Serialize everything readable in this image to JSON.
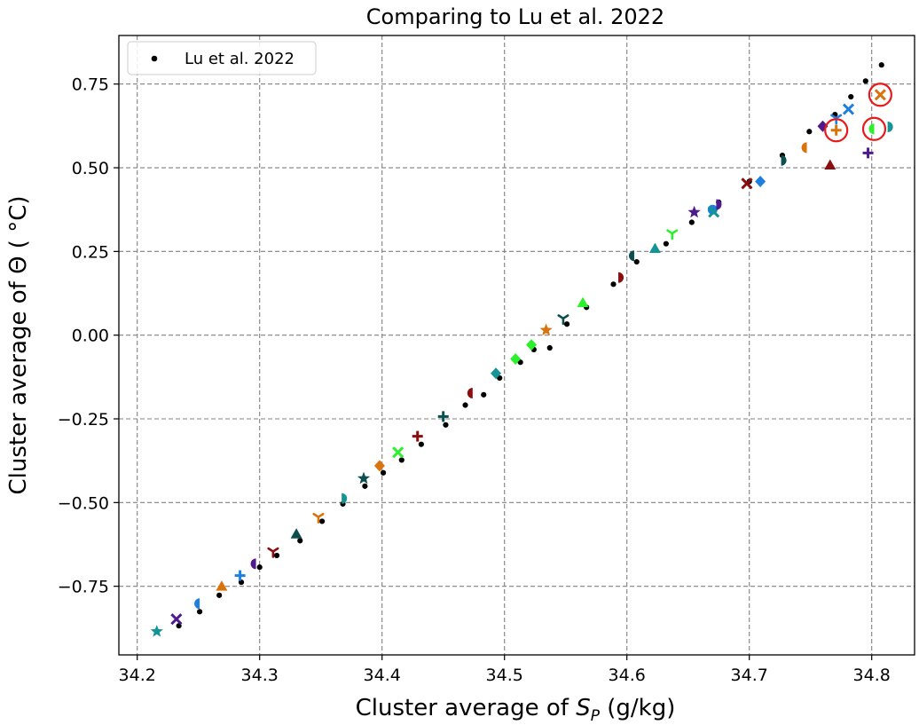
{
  "chart_data": {
    "type": "scatter",
    "title": "Comparing to Lu et al. 2022",
    "xlabel_main": "Cluster average of ",
    "xlabel_var": "S",
    "xlabel_sub": "P",
    "xlabel_unit": " (g/kg)",
    "ylabel": "Cluster average of Θ ( °C)",
    "xlim": [
      34.185,
      34.835
    ],
    "ylim": [
      -0.955,
      0.895
    ],
    "xticks": [
      34.2,
      34.3,
      34.4,
      34.5,
      34.6,
      34.7,
      34.8
    ],
    "xtick_labels": [
      "34.2",
      "34.3",
      "34.4",
      "34.5",
      "34.6",
      "34.7",
      "34.8"
    ],
    "yticks": [
      -0.75,
      -0.5,
      -0.25,
      0.0,
      0.25,
      0.5,
      0.75
    ],
    "ytick_labels": [
      "−0.75",
      "−0.50",
      "−0.25",
      "0.00",
      "0.25",
      "0.50",
      "0.75"
    ],
    "grid": true,
    "legend": {
      "position": "top-left",
      "entries": [
        "Lu et al. 2022"
      ]
    },
    "reference_series": {
      "name": "Lu et al. 2022",
      "color": "#000000",
      "points": [
        [
          34.234,
          -0.868
        ],
        [
          34.251,
          -0.826
        ],
        [
          34.267,
          -0.777
        ],
        [
          34.285,
          -0.738
        ],
        [
          34.3,
          -0.693
        ],
        [
          34.314,
          -0.658
        ],
        [
          34.333,
          -0.614
        ],
        [
          34.351,
          -0.556
        ],
        [
          34.368,
          -0.504
        ],
        [
          34.386,
          -0.451
        ],
        [
          34.401,
          -0.411
        ],
        [
          34.416,
          -0.373
        ],
        [
          34.432,
          -0.326
        ],
        [
          34.452,
          -0.268
        ],
        [
          34.468,
          -0.209
        ],
        [
          34.483,
          -0.178
        ],
        [
          34.496,
          -0.128
        ],
        [
          34.513,
          -0.081
        ],
        [
          34.524,
          -0.043
        ],
        [
          34.537,
          -0.038
        ],
        [
          34.551,
          0.033
        ],
        [
          34.567,
          0.083
        ],
        [
          34.589,
          0.152
        ],
        [
          34.608,
          0.219
        ],
        [
          34.632,
          0.273
        ],
        [
          34.653,
          0.337
        ],
        [
          34.675,
          0.397
        ],
        [
          34.7,
          0.459
        ],
        [
          34.727,
          0.537
        ],
        [
          34.749,
          0.608
        ],
        [
          34.77,
          0.659
        ],
        [
          34.783,
          0.712
        ],
        [
          34.795,
          0.759
        ],
        [
          34.808,
          0.807
        ]
      ]
    },
    "cluster_series": {
      "points": [
        {
          "x": 34.216,
          "y": -0.885,
          "marker": "star",
          "color": "#149494"
        },
        {
          "x": 34.232,
          "y": -0.848,
          "marker": "x",
          "color": "#4f1a8c"
        },
        {
          "x": 34.251,
          "y": -0.802,
          "marker": "half-circle-left",
          "color": "#1f7fde"
        },
        {
          "x": 34.269,
          "y": -0.75,
          "marker": "triangle",
          "color": "#d9730d"
        },
        {
          "x": 34.284,
          "y": -0.718,
          "marker": "plus",
          "color": "#1f7fde"
        },
        {
          "x": 34.297,
          "y": -0.683,
          "marker": "half-circle-left",
          "color": "#4f1a8c"
        },
        {
          "x": 34.311,
          "y": -0.646,
          "marker": "tri-down",
          "color": "#8c0d0d"
        },
        {
          "x": 34.33,
          "y": -0.594,
          "marker": "triangle",
          "color": "#0d4f4f"
        },
        {
          "x": 34.348,
          "y": -0.543,
          "marker": "tri-down",
          "color": "#d9730d"
        },
        {
          "x": 34.367,
          "y": -0.488,
          "marker": "half-circle-right",
          "color": "#149494"
        },
        {
          "x": 34.385,
          "y": -0.428,
          "marker": "star",
          "color": "#0d4f4f"
        },
        {
          "x": 34.398,
          "y": -0.39,
          "marker": "diamond",
          "color": "#d9730d"
        },
        {
          "x": 34.413,
          "y": -0.35,
          "marker": "x",
          "color": "#2df02d"
        },
        {
          "x": 34.429,
          "y": -0.302,
          "marker": "plus",
          "color": "#8c0d0d"
        },
        {
          "x": 34.45,
          "y": -0.243,
          "marker": "plus",
          "color": "#0d4f4f"
        },
        {
          "x": 34.474,
          "y": -0.173,
          "marker": "half-circle-left",
          "color": "#8c0d0d"
        },
        {
          "x": 34.493,
          "y": -0.114,
          "marker": "diamond",
          "color": "#149494"
        },
        {
          "x": 34.509,
          "y": -0.071,
          "marker": "diamond",
          "color": "#2df02d"
        },
        {
          "x": 34.522,
          "y": -0.029,
          "marker": "diamond",
          "color": "#2df02d"
        },
        {
          "x": 34.534,
          "y": 0.015,
          "marker": "star",
          "color": "#d9730d"
        },
        {
          "x": 34.548,
          "y": 0.05,
          "marker": "tri-down",
          "color": "#0d4f4f"
        },
        {
          "x": 34.564,
          "y": 0.097,
          "marker": "triangle",
          "color": "#2df02d"
        },
        {
          "x": 34.593,
          "y": 0.172,
          "marker": "half-circle-right",
          "color": "#8c0d0d"
        },
        {
          "x": 34.606,
          "y": 0.237,
          "marker": "half-circle-left",
          "color": "#0d4f4f"
        },
        {
          "x": 34.623,
          "y": 0.259,
          "marker": "triangle",
          "color": "#149494"
        },
        {
          "x": 34.637,
          "y": 0.304,
          "marker": "tri-down",
          "color": "#2df02d"
        },
        {
          "x": 34.655,
          "y": 0.367,
          "marker": "star",
          "color": "#4f1a8c"
        },
        {
          "x": 34.67,
          "y": 0.375,
          "marker": "circle",
          "color": "#1f7fde"
        },
        {
          "x": 34.671,
          "y": 0.368,
          "marker": "x",
          "color": "#149494"
        },
        {
          "x": 34.673,
          "y": 0.39,
          "marker": "half-circle-right",
          "color": "#4f1a8c"
        },
        {
          "x": 34.698,
          "y": 0.453,
          "marker": "x",
          "color": "#8c0d0d"
        },
        {
          "x": 34.709,
          "y": 0.459,
          "marker": "diamond",
          "color": "#1f7fde"
        },
        {
          "x": 34.726,
          "y": 0.522,
          "marker": "half-circle-right",
          "color": "#0d4f4f"
        },
        {
          "x": 34.747,
          "y": 0.56,
          "marker": "half-circle-left",
          "color": "#d9730d"
        },
        {
          "x": 34.76,
          "y": 0.624,
          "marker": "diamond",
          "color": "#4f1a8c"
        },
        {
          "x": 34.766,
          "y": 0.508,
          "marker": "triangle",
          "color": "#8c0d0d"
        },
        {
          "x": 34.771,
          "y": 0.612,
          "marker": "plus",
          "color": "#d9730d"
        },
        {
          "x": 34.771,
          "y": 0.648,
          "marker": "tri-down",
          "color": "#1f7fde"
        },
        {
          "x": 34.781,
          "y": 0.675,
          "marker": "x",
          "color": "#1f7fde"
        },
        {
          "x": 34.797,
          "y": 0.544,
          "marker": "plus",
          "color": "#4f1a8c"
        },
        {
          "x": 34.802,
          "y": 0.616,
          "marker": "half-circle-left",
          "color": "#2df02d"
        },
        {
          "x": 34.807,
          "y": 0.718,
          "marker": "x",
          "color": "#d9730d"
        },
        {
          "x": 34.813,
          "y": 0.622,
          "marker": "half-circle-right",
          "color": "#149494"
        }
      ]
    },
    "highlight_circles": {
      "color": "#e81a1a",
      "centers": [
        [
          34.771,
          0.612
        ],
        [
          34.802,
          0.616
        ],
        [
          34.807,
          0.718
        ]
      ]
    }
  }
}
